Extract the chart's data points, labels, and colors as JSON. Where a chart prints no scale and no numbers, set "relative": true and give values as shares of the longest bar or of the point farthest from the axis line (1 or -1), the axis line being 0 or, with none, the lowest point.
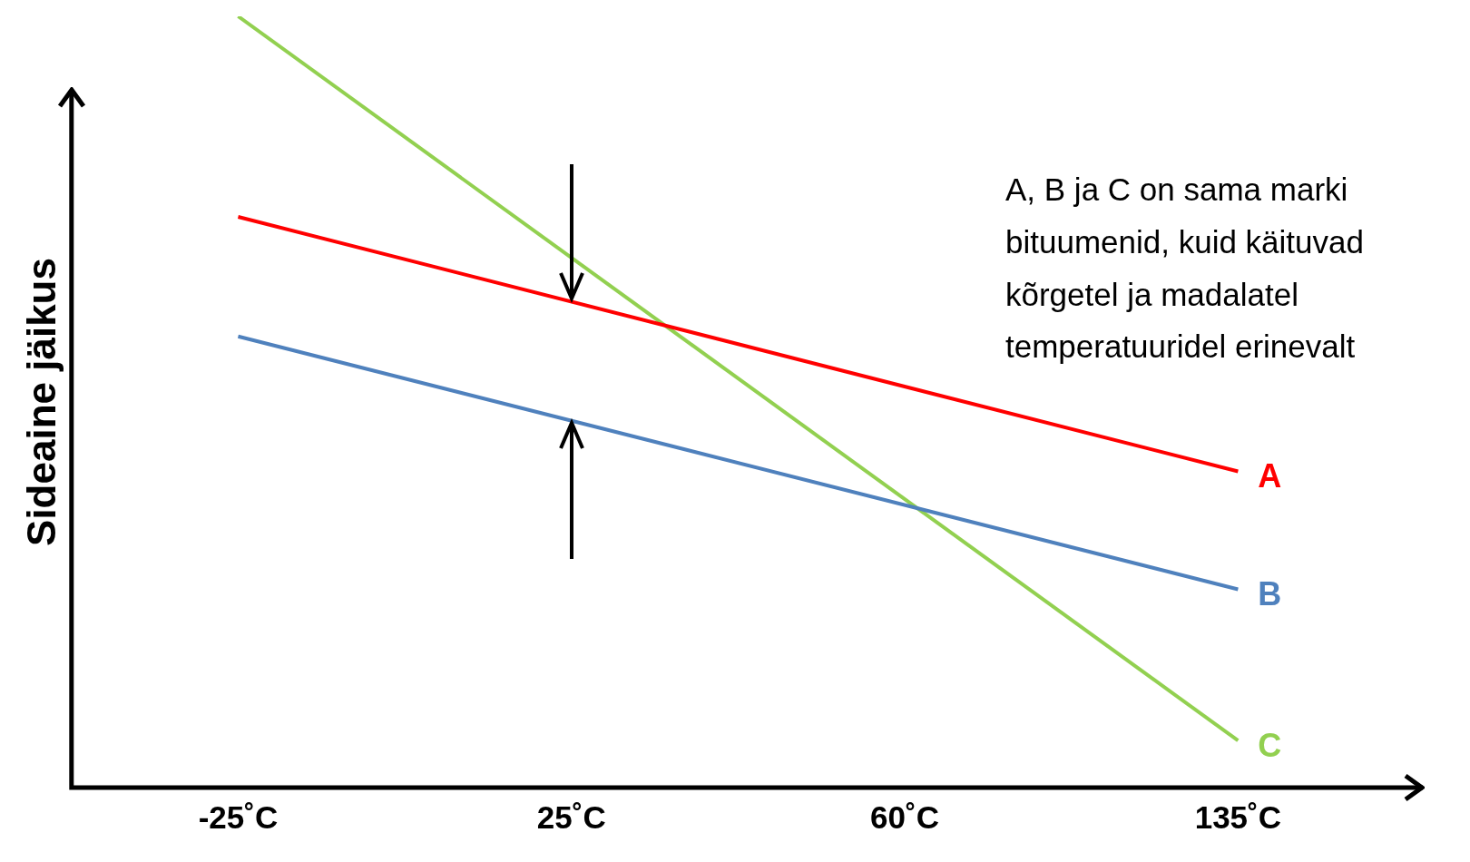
{
  "chart_data": {
    "type": "line",
    "relative": true,
    "ylabel": "Sideaine jäikus",
    "categories": [
      "-25˚C",
      "25˚C",
      "60˚C",
      "135˚C"
    ],
    "series": [
      {
        "name": "A",
        "color": "#ff0000",
        "values": [
          0.74,
          null,
          null,
          0.41
        ]
      },
      {
        "name": "B",
        "color": "#4f81bd",
        "values": [
          0.585,
          null,
          null,
          0.257
        ]
      },
      {
        "name": "C",
        "color": "#92d050",
        "values": [
          1,
          null,
          null,
          0.061
        ]
      }
    ],
    "annotations": [
      "A, B ja C on sama marki bituumenid, kuid käituvad kõrgetel ja madalatel temperatuuridel erinevalt"
    ],
    "grid": false,
    "legend": false
  }
}
